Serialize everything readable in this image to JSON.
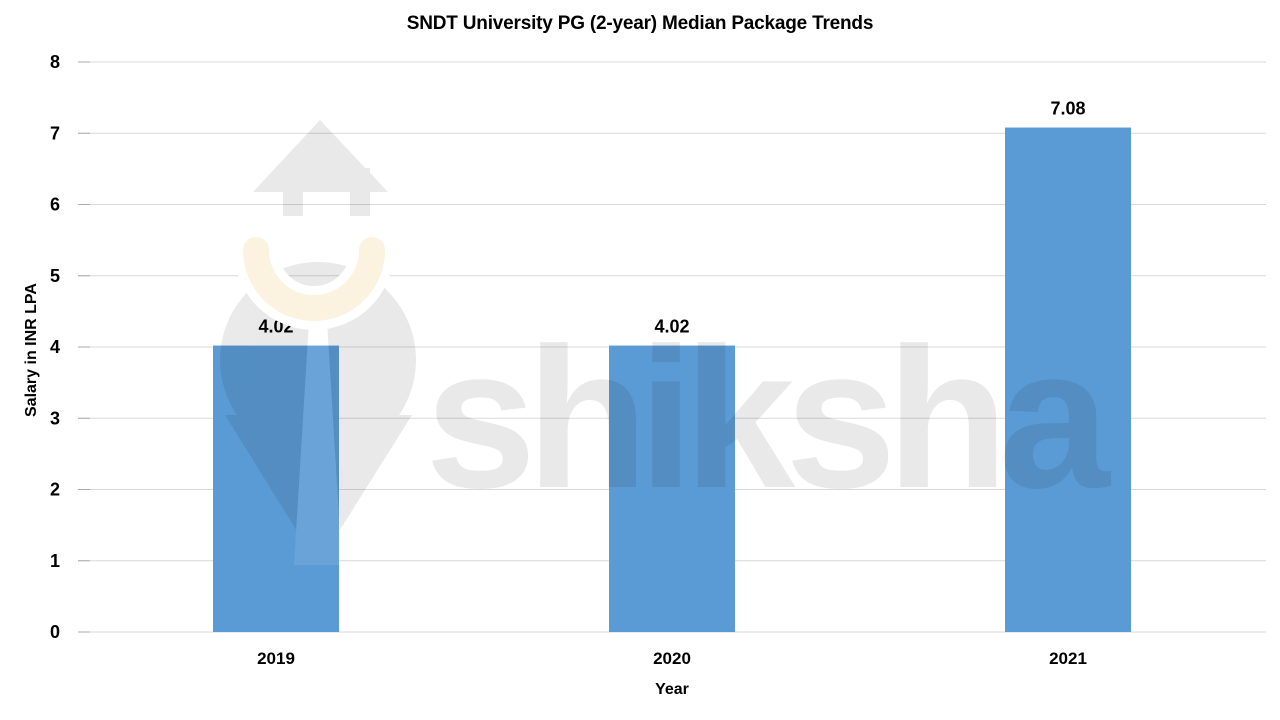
{
  "watermark": {
    "brand": "shiksha"
  },
  "chart_data": {
    "type": "bar",
    "title": "SNDT University PG (2-year) Median Package Trends",
    "categories": [
      "2019",
      "2020",
      "2021"
    ],
    "values": [
      4.02,
      4.02,
      7.08
    ],
    "data_labels": [
      "4.02",
      "4.02",
      "7.08"
    ],
    "xlabel": "Year",
    "ylabel": "Salary in INR LPA",
    "ylim": [
      0,
      8
    ],
    "yticks": [
      0,
      1,
      2,
      3,
      4,
      5,
      6,
      7,
      8
    ],
    "grid": true,
    "legend": false,
    "colors": {
      "bar": "#5B9BD5",
      "grid": "#D9D9D9",
      "tick": "#ABABAB",
      "text": "#000000",
      "watermark_cream": "#FBF1DB"
    }
  }
}
